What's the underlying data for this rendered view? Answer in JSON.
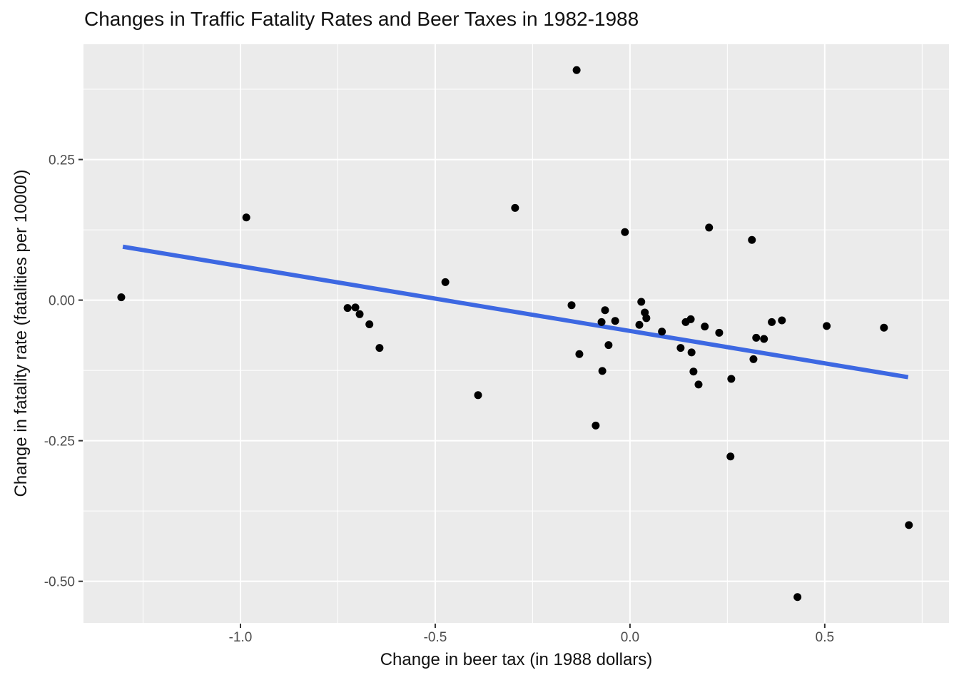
{
  "title": "Changes in Traffic Fatality Rates and Beer Taxes in 1982-1988",
  "chart_data": {
    "type": "scatter",
    "title": "Changes in Traffic Fatality Rates and Beer Taxes in 1982-1988",
    "xlabel": "Change in beer tax (in 1988 dollars)",
    "ylabel": "Change in fatality rate (fatalities per 10000)",
    "xlim": [
      -1.403,
      0.819
    ],
    "ylim": [
      -0.574,
      0.455
    ],
    "grid": "on",
    "legend_position": "none",
    "x_ticks": [
      {
        "value": -1.0,
        "label": "-1.0"
      },
      {
        "value": -0.5,
        "label": "-0.5"
      },
      {
        "value": 0.0,
        "label": "0.0"
      },
      {
        "value": 0.5,
        "label": "0.5"
      }
    ],
    "y_ticks": [
      {
        "value": 0.25,
        "label": "0.25"
      },
      {
        "value": 0.0,
        "label": "0.00"
      },
      {
        "value": -0.25,
        "label": "-0.25"
      },
      {
        "value": -0.5,
        "label": "-0.50"
      }
    ],
    "x_minor_gridlines": [
      -1.25,
      -0.75,
      -0.25,
      0.25,
      0.75
    ],
    "y_minor_gridlines": [
      0.375,
      0.125,
      -0.125,
      -0.375
    ],
    "points": [
      [
        -1.306,
        0.005
      ],
      [
        -0.985,
        0.147
      ],
      [
        -0.725,
        -0.014
      ],
      [
        -0.705,
        -0.013
      ],
      [
        -0.694,
        -0.025
      ],
      [
        -0.669,
        -0.043
      ],
      [
        -0.643,
        -0.085
      ],
      [
        -0.474,
        0.032
      ],
      [
        -0.39,
        -0.169
      ],
      [
        -0.295,
        0.164
      ],
      [
        -0.137,
        0.409
      ],
      [
        -0.15,
        -0.009
      ],
      [
        -0.13,
        -0.096
      ],
      [
        -0.088,
        -0.223
      ],
      [
        -0.073,
        -0.039
      ],
      [
        -0.071,
        -0.126
      ],
      [
        -0.064,
        -0.018
      ],
      [
        -0.055,
        -0.08
      ],
      [
        -0.038,
        -0.037
      ],
      [
        -0.013,
        0.121
      ],
      [
        0.024,
        -0.044
      ],
      [
        0.029,
        -0.003
      ],
      [
        0.038,
        -0.022
      ],
      [
        0.042,
        -0.032
      ],
      [
        0.082,
        -0.056
      ],
      [
        0.13,
        -0.085
      ],
      [
        0.143,
        -0.039
      ],
      [
        0.156,
        -0.034
      ],
      [
        0.158,
        -0.093
      ],
      [
        0.163,
        -0.127
      ],
      [
        0.176,
        -0.15
      ],
      [
        0.192,
        -0.047
      ],
      [
        0.203,
        0.129
      ],
      [
        0.229,
        -0.058
      ],
      [
        0.258,
        -0.278
      ],
      [
        0.26,
        -0.14
      ],
      [
        0.313,
        0.107
      ],
      [
        0.317,
        -0.105
      ],
      [
        0.324,
        -0.067
      ],
      [
        0.344,
        -0.069
      ],
      [
        0.364,
        -0.039
      ],
      [
        0.39,
        -0.036
      ],
      [
        0.43,
        -0.528
      ],
      [
        0.505,
        -0.046
      ],
      [
        0.652,
        -0.049
      ],
      [
        0.716,
        -0.4
      ]
    ],
    "trend_line": {
      "x1": -1.302,
      "y1": 0.095,
      "x2": 0.714,
      "y2": -0.137
    },
    "colors": {
      "panel_background": "#EBEBEB",
      "gridline": "#FFFFFF",
      "point": "#000000",
      "trend": "#3D68E2",
      "tick_label": "#4D4D4D",
      "tick_mark": "#333333",
      "text": "#111111"
    }
  }
}
